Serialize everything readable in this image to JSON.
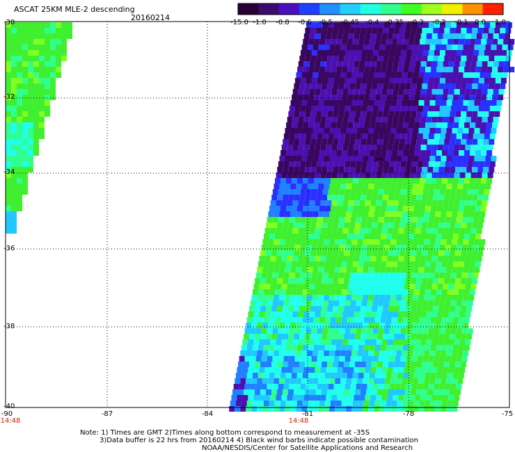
{
  "header": {
    "title": "ASCAT 25KM MLE-2 descending",
    "date": "20160214"
  },
  "colorbar": {
    "labels": [
      "-15.0",
      "-1.0",
      "-0.8",
      "-0.6",
      "-0.5",
      "-0.45",
      "-0.4",
      "-0.35",
      "-0.3",
      "-0.2",
      "-0.1",
      "0.0",
      "1.0"
    ],
    "colors": [
      "#2a0033",
      "#3d0a6e",
      "#4a10c0",
      "#2040ff",
      "#2090ff",
      "#20d0ff",
      "#20ffe0",
      "#30ff90",
      "#40ff20",
      "#a0ff20",
      "#f0f000",
      "#ff9000",
      "#ff2000"
    ]
  },
  "map": {
    "lat_labels": [
      "-30",
      "-32",
      "-34",
      "-36",
      "-38",
      "-40"
    ],
    "lon_labels": [
      "-90",
      "-87",
      "-84",
      "-81",
      "-78",
      "-75"
    ],
    "time_labels": [
      "14:48",
      "14:48"
    ]
  },
  "notes": {
    "line1": "Note: 1) Times are GMT 2)Times along bottom correspond to measurement at -35S",
    "line2": "3)Data buffer is 22 hrs from 20160214 4) Black wind barbs indicate possible contamination",
    "line3": "NOAA/NESDIS/Center for Satellite Applications and Research"
  }
}
